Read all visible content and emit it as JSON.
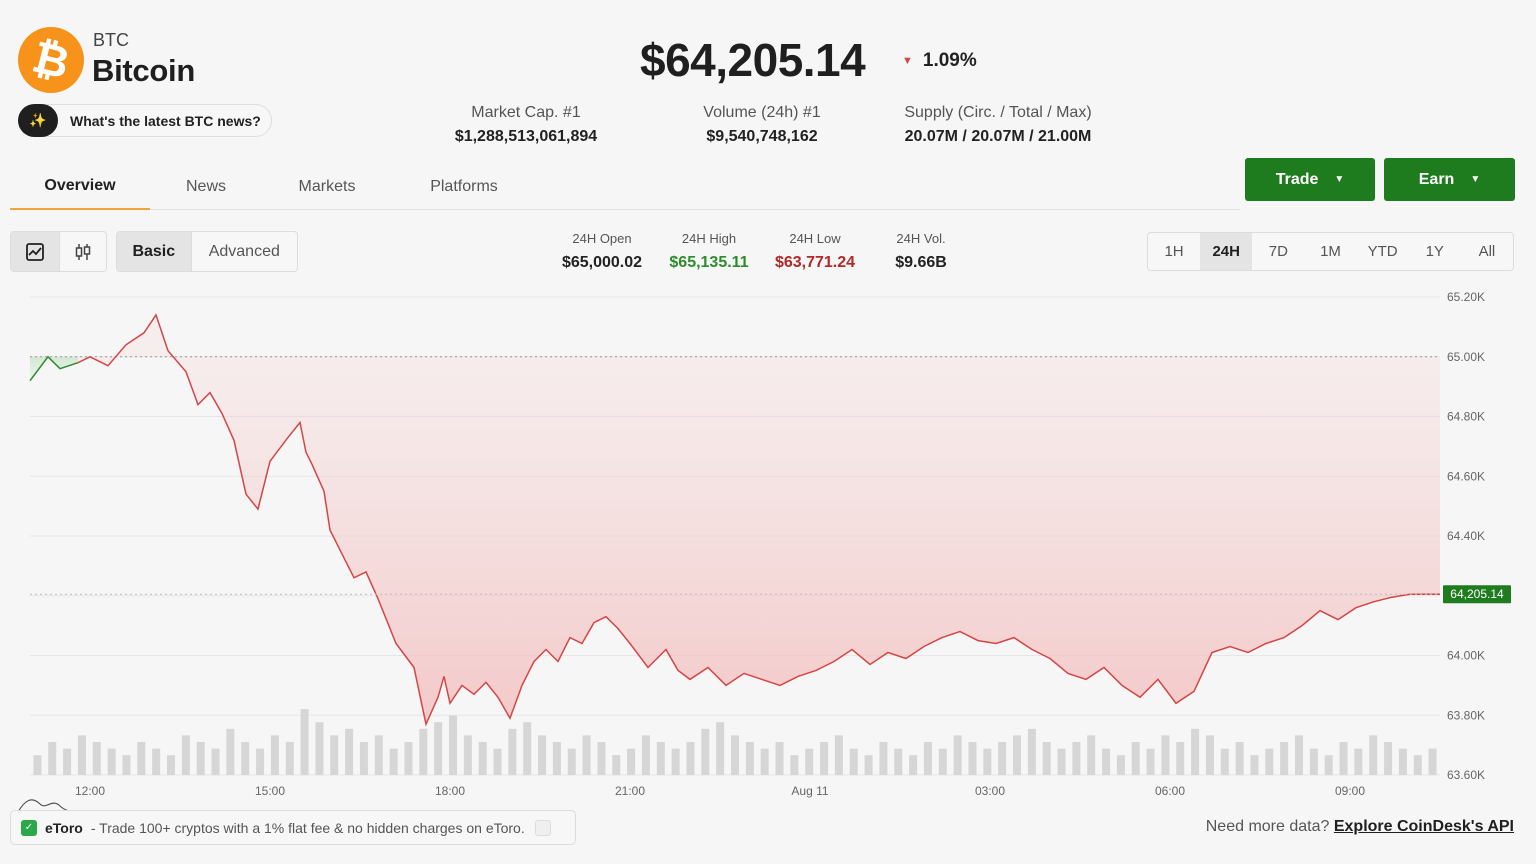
{
  "coin": {
    "symbol": "BTC",
    "name": "Bitcoin",
    "logo_glyph": "₿",
    "logo_color": "#f7931a"
  },
  "news_prompt": {
    "text": "What's the latest BTC news?",
    "icon": "sparkle-icon"
  },
  "price": {
    "value": "$64,205.14",
    "change": "1.09%",
    "direction": "down"
  },
  "stats": [
    {
      "label": "Market Cap. #1",
      "value": "$1,288,513,061,894"
    },
    {
      "label": "Volume (24h) #1",
      "value": "$9,540,748,162"
    },
    {
      "label": "Supply (Circ. / Total / Max)",
      "value": "20.07M / 20.07M / 21.00M"
    }
  ],
  "tabs": [
    "Overview",
    "News",
    "Markets",
    "Platforms"
  ],
  "active_tab": "Overview",
  "actions": {
    "trade": "Trade",
    "earn": "Earn"
  },
  "chart_modes": [
    "line-chart-icon",
    "candlestick-icon"
  ],
  "view_modes": {
    "basic": "Basic",
    "advanced": "Advanced"
  },
  "stats_24h": [
    {
      "label": "24H Open",
      "value": "$65,000.02",
      "color": "#222222"
    },
    {
      "label": "24H High",
      "value": "$65,135.11",
      "color": "#2e8b2e"
    },
    {
      "label": "24H Low",
      "value": "$63,771.24",
      "color": "#b22727"
    },
    {
      "label": "24H Vol.",
      "value": "$9.66B",
      "color": "#222222"
    }
  ],
  "time_ranges": [
    "1H",
    "24H",
    "7D",
    "1M",
    "YTD",
    "1Y",
    "All"
  ],
  "selected_range": "24H",
  "chart_data": {
    "type": "area",
    "title": "",
    "xlabel": "",
    "ylabel": "",
    "ylim": [
      63600,
      65200
    ],
    "y_ticks": [
      "65.20K",
      "65.00K",
      "64.80K",
      "64.60K",
      "64.40K",
      "64.20K",
      "64.00K",
      "63.80K",
      "63.60K"
    ],
    "x_ticks": [
      "12:00",
      "15:00",
      "18:00",
      "21:00",
      "Aug 11",
      "03:00",
      "06:00",
      "09:00"
    ],
    "x_tick_hours": [
      1,
      4,
      7,
      10,
      13,
      16,
      19,
      22
    ],
    "open_reference": 65000.02,
    "last_price_label": "64,205.14",
    "last_price": 64205.14,
    "colors": {
      "up": "#2e8b2e",
      "down": "#d64545",
      "grid": "#e6e6e6"
    },
    "x_range_hours": [
      0,
      23.5
    ],
    "series": [
      {
        "x": [
          0,
          0.3,
          0.5,
          0.8,
          1.0,
          1.3,
          1.6,
          1.9,
          2.1,
          2.3,
          2.6,
          2.8,
          3.0,
          3.2,
          3.4,
          3.6,
          3.8,
          4.0,
          4.3,
          4.5,
          4.6,
          4.7,
          4.9,
          5.0,
          5.2,
          5.4,
          5.6,
          5.8,
          6.1,
          6.4,
          6.6,
          6.8,
          6.9,
          7.0,
          7.2,
          7.4,
          7.6,
          7.8,
          8.0,
          8.2,
          8.4,
          8.6,
          8.8,
          9.0,
          9.2,
          9.4,
          9.6,
          9.8,
          10.0,
          10.3,
          10.6,
          10.8,
          11.0,
          11.3,
          11.6,
          11.9,
          12.2,
          12.5,
          12.8,
          13.1,
          13.4,
          13.7,
          14.0,
          14.3,
          14.6,
          14.9,
          15.2,
          15.5,
          15.8,
          16.1,
          16.4,
          16.7,
          17.0,
          17.3,
          17.6,
          17.9,
          18.2,
          18.5,
          18.8,
          19.1,
          19.4,
          19.7,
          20.0,
          20.3,
          20.6,
          20.9,
          21.2,
          21.5,
          21.8,
          22.1,
          22.4,
          22.7,
          23.0,
          23.3,
          23.5
        ],
        "y": [
          64920,
          65000,
          64960,
          64980,
          65000,
          64970,
          65040,
          65080,
          65140,
          65020,
          64950,
          64840,
          64880,
          64810,
          64720,
          64540,
          64490,
          64650,
          64730,
          64780,
          64680,
          64640,
          64550,
          64420,
          64340,
          64260,
          64280,
          64190,
          64040,
          63960,
          63770,
          63860,
          63930,
          63840,
          63900,
          63870,
          63910,
          63860,
          63790,
          63900,
          63980,
          64020,
          63980,
          64060,
          64040,
          64110,
          64130,
          64090,
          64040,
          63960,
          64020,
          63950,
          63920,
          63960,
          63900,
          63940,
          63920,
          63900,
          63930,
          63950,
          63980,
          64020,
          63970,
          64010,
          63990,
          64030,
          64060,
          64080,
          64050,
          64040,
          64060,
          64020,
          63990,
          63940,
          63920,
          63960,
          63900,
          63860,
          63920,
          63840,
          63880,
          64010,
          64030,
          64010,
          64040,
          64060,
          64100,
          64150,
          64120,
          64160,
          64180,
          64195,
          64205.14,
          64205.14,
          64205.14
        ]
      }
    ],
    "volume_relative": [
      0.3,
      0.5,
      0.4,
      0.6,
      0.5,
      0.4,
      0.3,
      0.5,
      0.4,
      0.3,
      0.6,
      0.5,
      0.4,
      0.7,
      0.5,
      0.4,
      0.6,
      0.5,
      1.0,
      0.8,
      0.6,
      0.7,
      0.5,
      0.6,
      0.4,
      0.5,
      0.7,
      0.8,
      0.9,
      0.6,
      0.5,
      0.4,
      0.7,
      0.8,
      0.6,
      0.5,
      0.4,
      0.6,
      0.5,
      0.3,
      0.4,
      0.6,
      0.5,
      0.4,
      0.5,
      0.7,
      0.8,
      0.6,
      0.5,
      0.4,
      0.5,
      0.3,
      0.4,
      0.5,
      0.6,
      0.4,
      0.3,
      0.5,
      0.4,
      0.3,
      0.5,
      0.4,
      0.6,
      0.5,
      0.4,
      0.5,
      0.6,
      0.7,
      0.5,
      0.4,
      0.5,
      0.6,
      0.4,
      0.3,
      0.5,
      0.4,
      0.6,
      0.5,
      0.7,
      0.6,
      0.4,
      0.5,
      0.3,
      0.4,
      0.5,
      0.6,
      0.4,
      0.3,
      0.5,
      0.4,
      0.6,
      0.5,
      0.4,
      0.3,
      0.4
    ]
  },
  "promo": {
    "brand": "eToro",
    "text": "- Trade 100+ cryptos with a 1% flat fee & no hidden charges on eToro."
  },
  "api": {
    "prefix": "Need more data?",
    "link": "Explore CoinDesk's API"
  }
}
